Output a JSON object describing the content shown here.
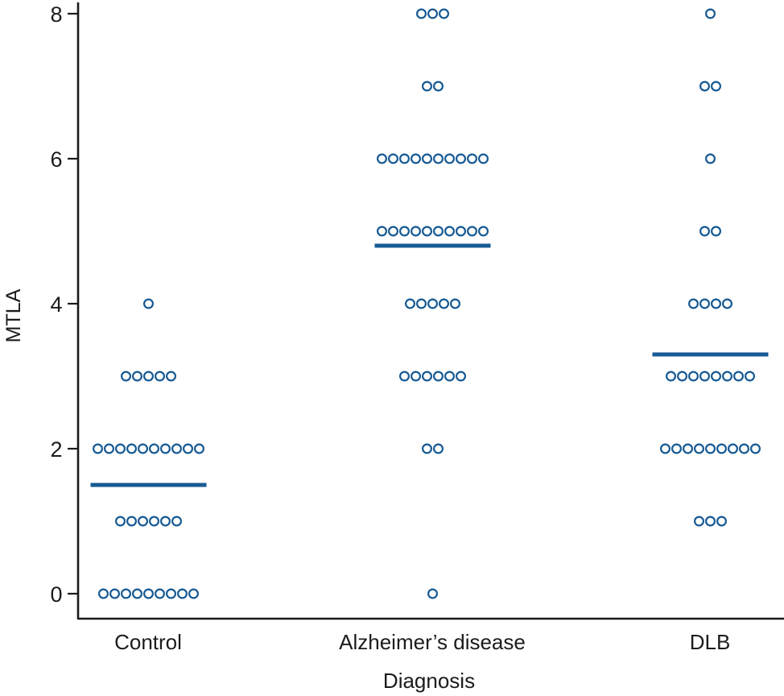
{
  "chart_data": {
    "type": "scatter",
    "title": "",
    "xlabel": "Diagnosis",
    "ylabel": "MTLA",
    "ylim": [
      0,
      8
    ],
    "yticks": [
      "0",
      "2",
      "4",
      "6",
      "8"
    ],
    "categories": [
      "Control",
      "Alzheimer’s disease",
      "DLB"
    ],
    "legend": "none",
    "grid": false,
    "point_color": "#175a94",
    "mean_line_color": "#175a94",
    "axis_color": "#1a1a1a",
    "groups": [
      {
        "label": "Control",
        "mean": 1.5,
        "counts": {
          "0": 9,
          "1": 6,
          "2": 10,
          "3": 5,
          "4": 1
        }
      },
      {
        "label": "Alzheimer’s disease",
        "mean": 4.8,
        "counts": {
          "0": 1,
          "2": 2,
          "3": 6,
          "4": 5,
          "5": 10,
          "6": 10,
          "7": 2,
          "8": 3
        }
      },
      {
        "label": "DLB",
        "mean": 3.3,
        "counts": {
          "1": 3,
          "2": 9,
          "3": 8,
          "4": 4,
          "5": 2,
          "6": 1,
          "7": 2,
          "8": 1
        }
      }
    ]
  }
}
